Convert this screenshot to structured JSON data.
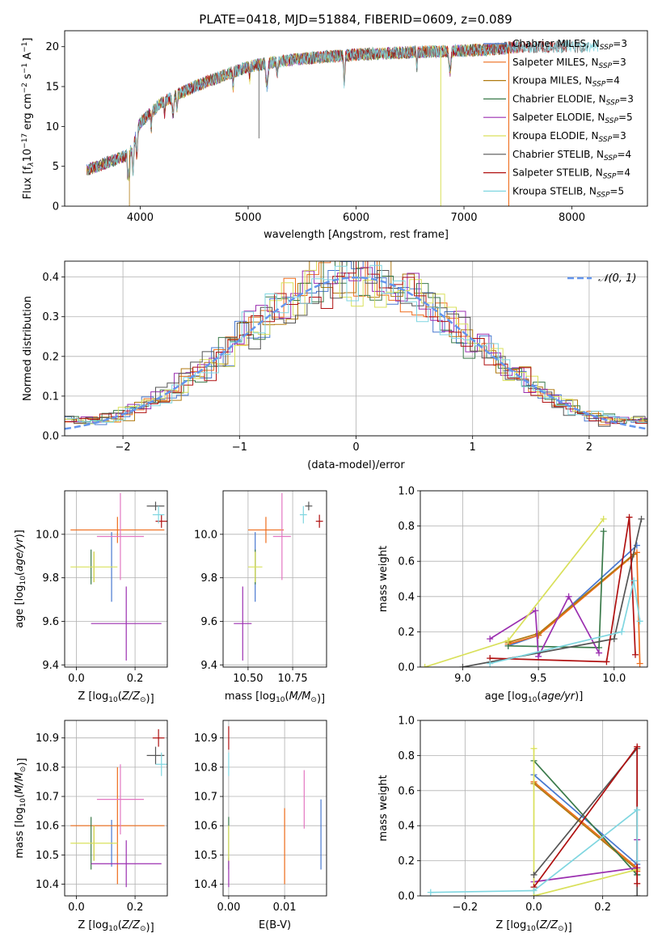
{
  "figure_title": "PLATE=0418, MJD=51884, FIBERID=0609, z=0.089",
  "colors": {
    "Chabrier MILES": "#4878d0",
    "Salpeter MILES": "#ee6c1b",
    "Kroupa MILES": "#b07a10",
    "Chabrier ELODIE": "#3a7a4a",
    "Salpeter ELODIE": "#9b2fb0",
    "Kroupa ELODIE": "#d9e05a",
    "Chabrier STELIB": "#555555",
    "Salpeter STELIB": "#b01010",
    "Kroupa STELIB": "#7fd6e0",
    "errbar_pink": "#e377c2",
    "gaussian": "#6495ed"
  },
  "chart_data": [
    {
      "id": "spectrum",
      "type": "line",
      "xlabel": "wavelength [Angstrom, rest frame]",
      "ylabel": "Flux [f_λ10^-17 erg cm^-2 s^-1 A^-1]",
      "xlim": [
        3300,
        8700
      ],
      "ylim": [
        0,
        22
      ],
      "xticks": [
        4000,
        5000,
        6000,
        7000,
        8000
      ],
      "yticks": [
        0,
        5,
        10,
        15,
        20
      ],
      "grid": false,
      "legend_position": "top-right",
      "series": [
        {
          "name": "Chabrier MILES, N_SSP=3"
        },
        {
          "name": "Salpeter MILES, N_SSP=3"
        },
        {
          "name": "Kroupa MILES, N_SSP=4"
        },
        {
          "name": "Chabrier ELODIE, N_SSP=3"
        },
        {
          "name": "Salpeter ELODIE, N_SSP=5"
        },
        {
          "name": "Kroupa ELODIE, N_SSP=3"
        },
        {
          "name": "Chabrier STELIB, N_SSP=4"
        },
        {
          "name": "Salpeter STELIB, N_SSP=4"
        },
        {
          "name": "Kroupa STELIB, N_SSP=5"
        }
      ],
      "continuum": {
        "x": [
          3500,
          3700,
          3900,
          4000,
          4200,
          4500,
          4800,
          5000,
          5200,
          5500,
          6000,
          6500,
          7000,
          7300,
          7500
        ],
        "y": [
          4.5,
          5.5,
          6.5,
          10.5,
          13.0,
          15.0,
          16.5,
          17.5,
          18.0,
          18.5,
          19.0,
          19.3,
          19.5,
          19.7,
          20.0
        ]
      }
    },
    {
      "id": "residuals",
      "type": "histogram",
      "xlabel": "(data-model)/error",
      "ylabel": "Normed distribution",
      "xlim": [
        -2.5,
        2.5
      ],
      "ylim": [
        0,
        0.44
      ],
      "xticks": [
        -2,
        -1,
        0,
        1,
        2
      ],
      "yticks": [
        0.0,
        0.1,
        0.2,
        0.3,
        0.4
      ],
      "grid": true,
      "gaussian_label": "𝒩(0, 1)",
      "legend_position": "top-right"
    },
    {
      "id": "age_vs_Z",
      "type": "errorbar",
      "xlabel": "Z [log10(Z/Z⊙)]",
      "ylabel": "age  [log10(age/yr)]",
      "xlim": [
        -0.04,
        0.31
      ],
      "ylim": [
        9.39,
        10.2
      ],
      "xticks": [
        0.0,
        0.2
      ],
      "yticks": [
        9.4,
        9.6,
        9.8,
        10.0
      ],
      "points": [
        {
          "series": "Chabrier MILES",
          "x": 0.12,
          "xerr": 0.0,
          "y": 9.85,
          "yerr": 0.16
        },
        {
          "series": "Salpeter MILES",
          "x": 0.14,
          "xerr": 0.16,
          "y": 10.02,
          "yerr": 0.06
        },
        {
          "series": "Kroupa MILES",
          "x": 0.06,
          "xerr": 0.0,
          "y": 9.85,
          "yerr": 0.07
        },
        {
          "series": "Chabrier ELODIE",
          "x": 0.05,
          "xerr": 0.0,
          "y": 9.85,
          "yerr": 0.08
        },
        {
          "series": "Salpeter ELODIE",
          "x": 0.17,
          "xerr": 0.12,
          "y": 9.59,
          "yerr": 0.17
        },
        {
          "series": "Kroupa ELODIE",
          "x": 0.06,
          "xerr": 0.08,
          "y": 9.85,
          "yerr": 0.07
        },
        {
          "series": "Chabrier STELIB",
          "x": 0.27,
          "xerr": 0.03,
          "y": 10.13,
          "yerr": 0.02
        },
        {
          "series": "Salpeter STELIB",
          "x": 0.29,
          "xerr": 0.02,
          "y": 10.06,
          "yerr": 0.03
        },
        {
          "series": "Kroupa STELIB",
          "x": 0.28,
          "xerr": 0.02,
          "y": 10.09,
          "yerr": 0.04
        },
        {
          "series": "errbar_pink",
          "x": 0.15,
          "xerr": 0.08,
          "y": 9.99,
          "yerr": 0.2
        }
      ]
    },
    {
      "id": "age_vs_mass",
      "type": "errorbar",
      "xlabel": "mass [log10(M/M⊙)]",
      "ylabel": "",
      "xlim": [
        10.36,
        10.94
      ],
      "ylim": [
        9.39,
        10.2
      ],
      "xticks": [
        10.5,
        10.75
      ],
      "yticks": [
        9.4,
        9.6,
        9.8,
        10.0
      ],
      "points": [
        {
          "series": "Chabrier MILES",
          "x": 10.54,
          "xerr": 0.0,
          "y": 9.85,
          "yerr": 0.16
        },
        {
          "series": "Salpeter MILES",
          "x": 10.6,
          "xerr": 0.1,
          "y": 10.02,
          "yerr": 0.06
        },
        {
          "series": "Kroupa MILES",
          "x": 10.54,
          "xerr": 0.0,
          "y": 9.85,
          "yerr": 0.07
        },
        {
          "series": "Chabrier ELODIE",
          "x": 10.54,
          "xerr": 0.0,
          "y": 9.85,
          "yerr": 0.08
        },
        {
          "series": "Salpeter ELODIE",
          "x": 10.47,
          "xerr": 0.05,
          "y": 9.59,
          "yerr": 0.17
        },
        {
          "series": "Kroupa ELODIE",
          "x": 10.54,
          "xerr": 0.04,
          "y": 9.85,
          "yerr": 0.07
        },
        {
          "series": "Chabrier STELIB",
          "x": 10.84,
          "xerr": 0.02,
          "y": 10.13,
          "yerr": 0.02
        },
        {
          "series": "Salpeter STELIB",
          "x": 10.9,
          "xerr": 0.02,
          "y": 10.06,
          "yerr": 0.03
        },
        {
          "series": "Kroupa STELIB",
          "x": 10.81,
          "xerr": 0.02,
          "y": 10.09,
          "yerr": 0.04
        },
        {
          "series": "errbar_pink",
          "x": 10.69,
          "xerr": 0.05,
          "y": 9.99,
          "yerr": 0.2
        }
      ]
    },
    {
      "id": "weight_vs_age",
      "type": "line",
      "xlabel": "age  [log10(age/yr)]",
      "ylabel": "mass weight",
      "xlim": [
        8.72,
        10.22
      ],
      "ylim": [
        0,
        1
      ],
      "xticks": [
        9.0,
        9.5,
        10.0
      ],
      "yticks": [
        0.0,
        0.2,
        0.4,
        0.6,
        0.8,
        1.0
      ],
      "series": [
        {
          "series": "Chabrier MILES",
          "x": [
            9.3,
            9.5,
            10.15
          ],
          "y": [
            0.12,
            0.18,
            0.69
          ]
        },
        {
          "series": "Salpeter MILES",
          "x": [
            9.3,
            9.5,
            10.15,
            10.17
          ],
          "y": [
            0.13,
            0.18,
            0.65,
            0.02
          ]
        },
        {
          "series": "Kroupa MILES",
          "x": [
            9.3,
            9.5,
            10.13
          ],
          "y": [
            0.14,
            0.19,
            0.64
          ]
        },
        {
          "series": "Chabrier ELODIE",
          "x": [
            9.3,
            9.9,
            9.93
          ],
          "y": [
            0.12,
            0.11,
            0.77
          ]
        },
        {
          "series": "Salpeter ELODIE",
          "x": [
            9.18,
            9.48,
            9.5,
            9.7,
            9.9
          ],
          "y": [
            0.16,
            0.32,
            0.06,
            0.4,
            0.08
          ]
        },
        {
          "series": "Kroupa ELODIE",
          "x": [
            8.75,
            9.3,
            9.93
          ],
          "y": [
            0.0,
            0.15,
            0.84
          ]
        },
        {
          "series": "Chabrier STELIB",
          "x": [
            9.0,
            10.0,
            10.18
          ],
          "y": [
            0.0,
            0.16,
            0.84
          ]
        },
        {
          "series": "Salpeter STELIB",
          "x": [
            9.18,
            9.95,
            10.1,
            10.14
          ],
          "y": [
            0.05,
            0.03,
            0.85,
            0.07
          ]
        },
        {
          "series": "Kroupa STELIB",
          "x": [
            9.18,
            10.05,
            10.13,
            10.17
          ],
          "y": [
            0.02,
            0.2,
            0.49,
            0.26
          ]
        }
      ]
    },
    {
      "id": "mass_vs_Z",
      "type": "errorbar",
      "xlabel": "Z [log10(Z/Z⊙)]",
      "ylabel": "mass [log10(M/M⊙)]",
      "xlim": [
        -0.04,
        0.31
      ],
      "ylim": [
        10.36,
        10.96
      ],
      "xticks": [
        0.0,
        0.2
      ],
      "yticks": [
        10.4,
        10.5,
        10.6,
        10.7,
        10.8,
        10.9
      ],
      "points": [
        {
          "series": "Chabrier MILES",
          "x": 0.12,
          "xerr": 0.0,
          "y": 10.54,
          "yerr": 0.08
        },
        {
          "series": "Salpeter MILES",
          "x": 0.14,
          "xerr": 0.16,
          "y": 10.6,
          "yerr": 0.2
        },
        {
          "series": "Kroupa MILES",
          "x": 0.06,
          "xerr": 0.0,
          "y": 10.54,
          "yerr": 0.06
        },
        {
          "series": "Chabrier ELODIE",
          "x": 0.05,
          "xerr": 0.0,
          "y": 10.54,
          "yerr": 0.09
        },
        {
          "series": "Salpeter ELODIE",
          "x": 0.17,
          "xerr": 0.12,
          "y": 10.47,
          "yerr": 0.08
        },
        {
          "series": "Kroupa ELODIE",
          "x": 0.06,
          "xerr": 0.08,
          "y": 10.54,
          "yerr": 0.06
        },
        {
          "series": "Chabrier STELIB",
          "x": 0.27,
          "xerr": 0.03,
          "y": 10.84,
          "yerr": 0.03
        },
        {
          "series": "Salpeter STELIB",
          "x": 0.28,
          "xerr": 0.02,
          "y": 10.9,
          "yerr": 0.03
        },
        {
          "series": "Kroupa STELIB",
          "x": 0.29,
          "xerr": 0.02,
          "y": 10.81,
          "yerr": 0.04
        },
        {
          "series": "errbar_pink",
          "x": 0.15,
          "xerr": 0.08,
          "y": 10.69,
          "yerr": 0.12
        }
      ]
    },
    {
      "id": "mass_vs_EBV",
      "type": "errorbar",
      "xlabel": "E(B-V)",
      "ylabel": "",
      "xlim": [
        -0.001,
        0.0175
      ],
      "ylim": [
        10.36,
        10.96
      ],
      "xticks": [
        0.0,
        0.01
      ],
      "yticks": [
        10.4,
        10.5,
        10.6,
        10.7,
        10.8,
        10.9
      ],
      "points": [
        {
          "series": "Chabrier MILES",
          "x": 0.0165,
          "xerr": 0.0,
          "y": 10.57,
          "yerr": 0.12
        },
        {
          "series": "Salpeter MILES",
          "x": 0.01,
          "xerr": 0.0,
          "y": 10.53,
          "yerr": 0.13
        },
        {
          "series": "errbar_pink",
          "x": 0.0135,
          "xerr": 0.0,
          "y": 10.69,
          "yerr": 0.1
        },
        {
          "series": "Chabrier ELODIE",
          "x": 0.0,
          "xerr": 0.0,
          "y": 10.54,
          "yerr": 0.09
        },
        {
          "series": "Salpeter ELODIE",
          "x": 0.0,
          "xerr": 0.0,
          "y": 10.44,
          "yerr": 0.05
        },
        {
          "series": "Kroupa ELODIE",
          "x": 0.0,
          "xerr": 0.0,
          "y": 10.54,
          "yerr": 0.06
        },
        {
          "series": "Salpeter STELIB",
          "x": 0.0,
          "xerr": 0.0,
          "y": 10.9,
          "yerr": 0.04
        },
        {
          "series": "Kroupa STELIB",
          "x": 0.0,
          "xerr": 0.0,
          "y": 10.81,
          "yerr": 0.04
        }
      ]
    },
    {
      "id": "weight_vs_Z",
      "type": "line",
      "xlabel": "Z [log10(Z/Z⊙)]",
      "ylabel": "mass weight",
      "xlim": [
        -0.33,
        0.33
      ],
      "ylim": [
        0,
        1
      ],
      "xticks": [
        -0.2,
        0.0,
        0.2
      ],
      "yticks": [
        0.0,
        0.2,
        0.4,
        0.6,
        0.8,
        1.0
      ],
      "series": [
        {
          "series": "Chabrier MILES",
          "x": [
            0.0,
            0.3,
            0.3
          ],
          "y": [
            0.69,
            0.18,
            0.12
          ]
        },
        {
          "series": "Salpeter MILES",
          "x": [
            0.0,
            0.3,
            0.3
          ],
          "y": [
            0.65,
            0.16,
            0.14
          ]
        },
        {
          "series": "Kroupa MILES",
          "x": [
            0.0,
            0.3
          ],
          "y": [
            0.64,
            0.15
          ]
        },
        {
          "series": "Chabrier ELODIE",
          "x": [
            0.0,
            0.3
          ],
          "y": [
            0.77,
            0.12
          ]
        },
        {
          "series": "Salpeter ELODIE",
          "x": [
            0.0,
            0.3,
            0.3
          ],
          "y": [
            0.08,
            0.16,
            0.32
          ]
        },
        {
          "series": "Kroupa ELODIE",
          "x": [
            0.0,
            0.0,
            0.3
          ],
          "y": [
            0.84,
            0.0,
            0.15
          ]
        },
        {
          "series": "Chabrier STELIB",
          "x": [
            0.0,
            0.3,
            0.3
          ],
          "y": [
            0.12,
            0.84,
            0.0
          ]
        },
        {
          "series": "Salpeter STELIB",
          "x": [
            0.0,
            0.3,
            0.3
          ],
          "y": [
            0.05,
            0.85,
            0.07
          ]
        },
        {
          "series": "Kroupa STELIB",
          "x": [
            -0.3,
            0.0,
            0.3,
            0.3
          ],
          "y": [
            0.02,
            0.03,
            0.49,
            0.2
          ]
        }
      ]
    }
  ]
}
